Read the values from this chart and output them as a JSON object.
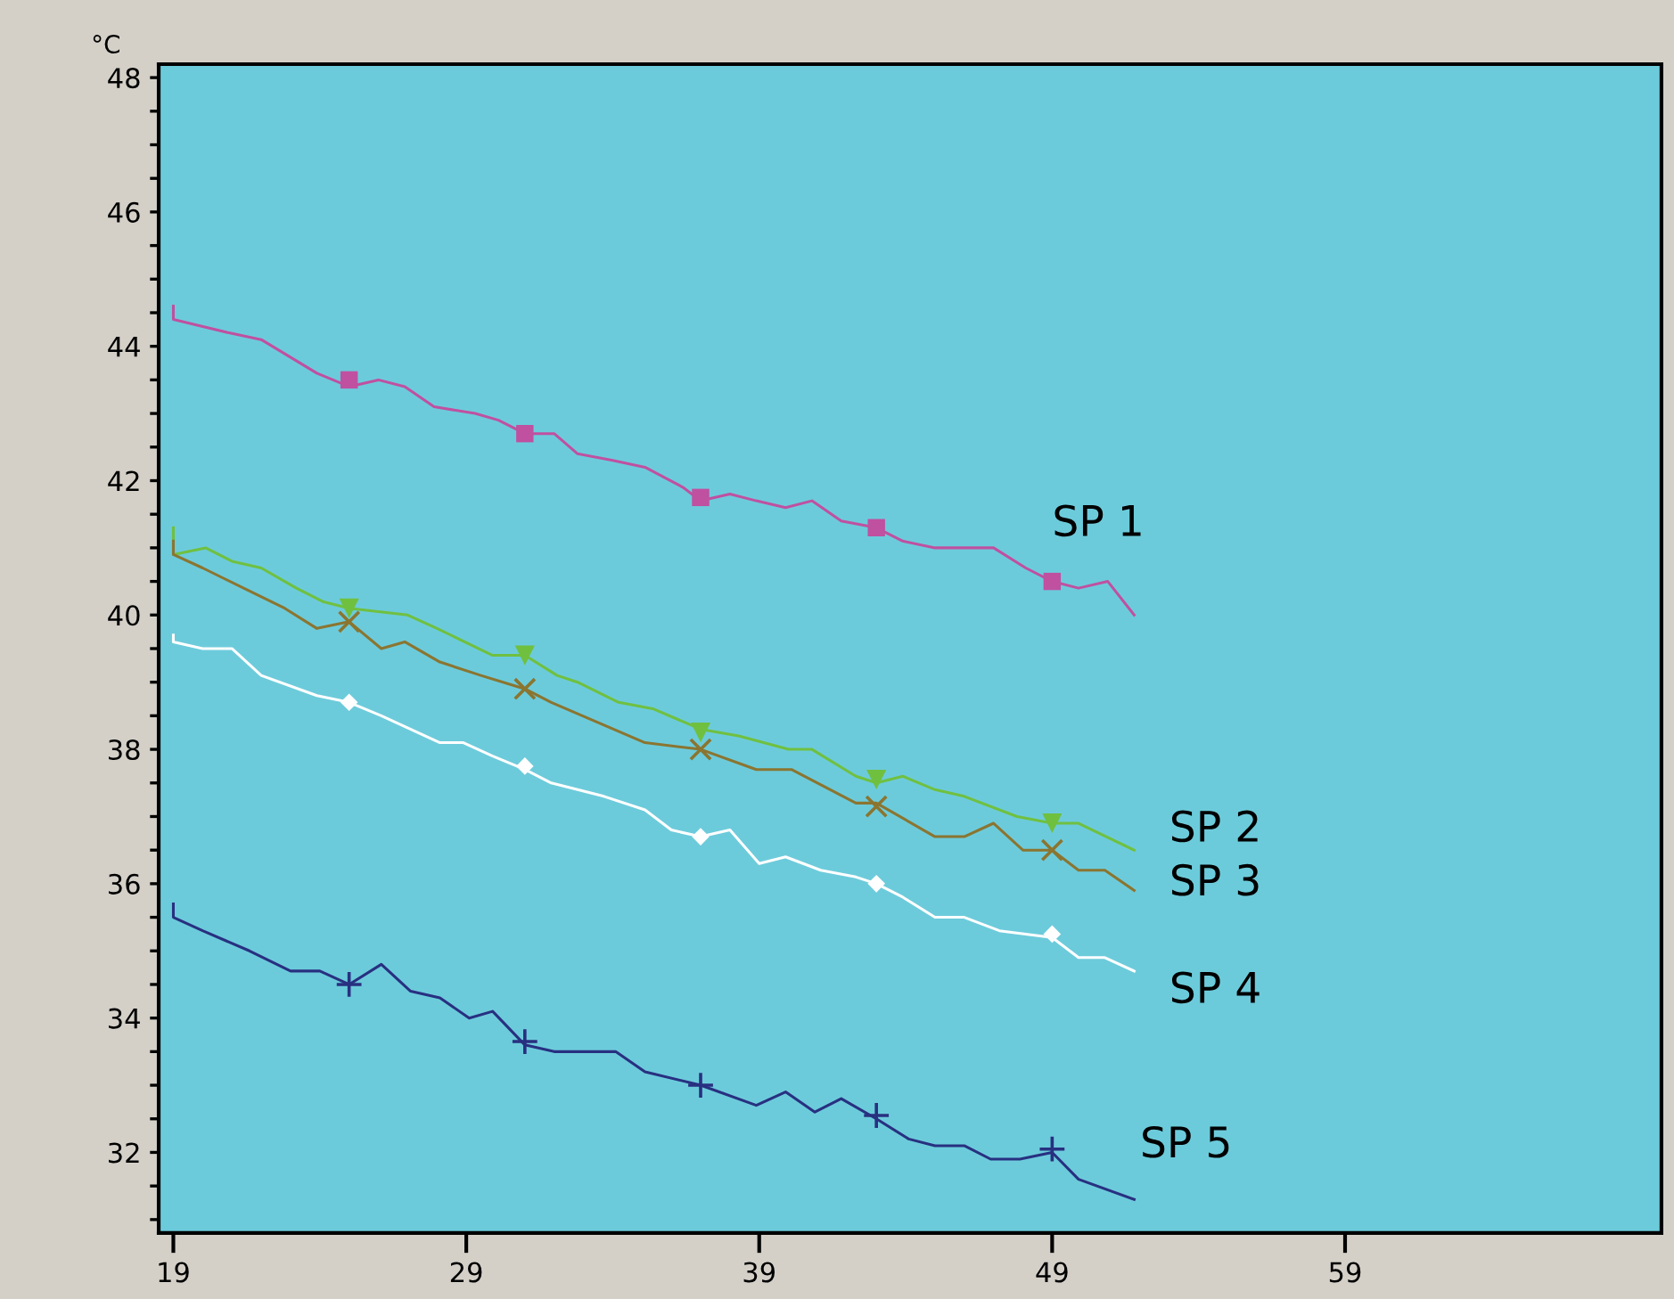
{
  "chart_data": {
    "type": "line",
    "ylabel": "°C",
    "xlim": [
      18.5,
      69.8
    ],
    "ylim": [
      30.8,
      48.2
    ],
    "xticks": [
      19,
      29,
      39,
      49,
      59
    ],
    "yticks": [
      {
        "value": 31,
        "label": null
      },
      {
        "value": 31.5,
        "label": null
      },
      32,
      {
        "value": 32.5,
        "label": null
      },
      {
        "value": 33,
        "label": null
      },
      {
        "value": 33.5,
        "label": null
      },
      34,
      {
        "value": 34.5,
        "label": null
      },
      {
        "value": 35,
        "label": null
      },
      {
        "value": 35.5,
        "label": null
      },
      36,
      {
        "value": 36.5,
        "label": null
      },
      {
        "value": 37,
        "label": null
      },
      {
        "value": 37.5,
        "label": null
      },
      38,
      {
        "value": 38.5,
        "label": null
      },
      {
        "value": 39,
        "label": null
      },
      {
        "value": 39.5,
        "label": null
      },
      40,
      {
        "value": 40.5,
        "label": null
      },
      {
        "value": 41,
        "label": null
      },
      {
        "value": 41.5,
        "label": null
      },
      42,
      {
        "value": 42.5,
        "label": null
      },
      {
        "value": 43,
        "label": null
      },
      {
        "value": 43.5,
        "label": null
      },
      44,
      {
        "value": 44.5,
        "label": null
      },
      {
        "value": 45,
        "label": null
      },
      {
        "value": 45.5,
        "label": null
      },
      46,
      {
        "value": 46.5,
        "label": null
      },
      {
        "value": 47,
        "label": null
      },
      {
        "value": 47.5,
        "label": null
      },
      48
    ],
    "grid": false,
    "legend": false,
    "line_style": "solid",
    "marker": "none",
    "series": [
      {
        "name": "SP 1",
        "color": "#c050a0",
        "x": [
          19,
          19,
          20.9,
          22,
          23.9,
          25,
          26,
          26.9,
          27.9,
          29.3,
          30.1,
          31,
          32,
          32.8,
          34,
          35.1,
          36.4,
          37,
          38,
          38.9,
          39.9,
          40.8,
          41.8,
          43,
          43.9,
          45,
          46,
          47,
          48.1,
          49,
          49.9,
          50.9,
          51.8
        ],
        "values": [
          44.6,
          44.4,
          44.2,
          44.1,
          43.6,
          43.4,
          43.5,
          43.4,
          43.1,
          43.0,
          42.9,
          42.7,
          42.7,
          42.4,
          42.3,
          42.2,
          41.9,
          41.7,
          41.8,
          41.7,
          41.6,
          41.7,
          41.4,
          41.3,
          41.1,
          41.0,
          41.0,
          41.0,
          40.7,
          40.5,
          40.4,
          40.5,
          40.0
        ]
      },
      {
        "name": "SP 2",
        "color": "#70c040",
        "x": [
          19,
          19,
          20.1,
          21,
          22,
          23.2,
          24.1,
          25,
          27,
          28,
          29.9,
          31,
          32.1,
          32.8,
          34.2,
          35.4,
          37,
          38.3,
          40,
          40.8,
          42.3,
          43,
          43.9,
          45,
          46,
          47.8,
          49,
          49.9,
          51.8
        ],
        "values": [
          41.3,
          40.9,
          41.0,
          40.8,
          40.7,
          40.4,
          40.2,
          40.1,
          40.0,
          39.8,
          39.4,
          39.4,
          39.1,
          39.0,
          38.7,
          38.6,
          38.3,
          38.2,
          38.0,
          38.0,
          37.6,
          37.5,
          37.6,
          37.4,
          37.3,
          37.0,
          36.9,
          36.9,
          36.5
        ]
      },
      {
        "name": "SP 3",
        "color": "#8b7530",
        "x": [
          19,
          19,
          20,
          21.4,
          22.8,
          23.9,
          25,
          26.1,
          26.9,
          28.1,
          29.5,
          31,
          31.9,
          35.1,
          37,
          38.9,
          40.1,
          42.3,
          43,
          45,
          46,
          47,
          48,
          49,
          49.9,
          50.8,
          51.8
        ],
        "values": [
          41.1,
          40.9,
          40.7,
          40.4,
          40.1,
          39.8,
          39.9,
          39.5,
          39.6,
          39.3,
          39.1,
          38.9,
          38.7,
          38.1,
          38.0,
          37.7,
          37.7,
          37.2,
          37.2,
          36.7,
          36.7,
          36.9,
          36.5,
          36.5,
          36.2,
          36.2,
          35.9
        ]
      },
      {
        "name": "SP 4",
        "color": "#ffffff",
        "x": [
          19,
          19,
          20,
          21,
          22,
          23.9,
          25,
          26.1,
          28.1,
          28.9,
          29.9,
          31,
          31.9,
          33.7,
          35.1,
          36,
          37,
          38,
          39,
          39.9,
          41.1,
          42.3,
          43,
          43.9,
          45,
          46,
          47.2,
          49,
          49.9,
          50.8,
          51.8
        ],
        "values": [
          39.7,
          39.6,
          39.5,
          39.5,
          39.1,
          38.8,
          38.7,
          38.5,
          38.1,
          38.1,
          37.9,
          37.7,
          37.5,
          37.3,
          37.1,
          36.8,
          36.7,
          36.8,
          36.3,
          36.4,
          36.2,
          36.1,
          36.0,
          35.8,
          35.5,
          35.5,
          35.3,
          35.2,
          34.9,
          34.9,
          34.7
        ]
      },
      {
        "name": "SP 5",
        "color": "#283080",
        "x": [
          19,
          19,
          20,
          21.6,
          23,
          24,
          25,
          26.1,
          27.1,
          28.1,
          29.1,
          29.9,
          31,
          32,
          34.1,
          35.1,
          37,
          38.9,
          39.9,
          40.9,
          41.8,
          43,
          44.1,
          45,
          46,
          46.9,
          47.9,
          49,
          49.9,
          51.8
        ],
        "values": [
          35.7,
          35.5,
          35.3,
          35.0,
          34.7,
          34.7,
          34.5,
          34.8,
          34.4,
          34.3,
          34.0,
          34.1,
          33.6,
          33.5,
          33.5,
          33.2,
          33.0,
          32.7,
          32.9,
          32.6,
          32.8,
          32.5,
          32.2,
          32.1,
          32.1,
          31.9,
          31.9,
          32.0,
          31.6,
          31.3
        ]
      },
      {
        "type": "scatter",
        "color": "#c050a0",
        "marker": "square",
        "x": [
          25,
          31,
          37,
          43,
          49
        ],
        "values": [
          43.5,
          42.7,
          41.75,
          41.3,
          40.5
        ]
      },
      {
        "type": "scatter",
        "color": "#70c040",
        "marker": "triangle",
        "x": [
          25,
          31,
          37,
          43,
          49
        ],
        "values": [
          40.1,
          39.4,
          38.25,
          37.55,
          36.9
        ]
      },
      {
        "type": "scatter",
        "color": "#8b7530",
        "marker": "cross",
        "x": [
          25,
          31,
          37,
          43,
          49
        ],
        "values": [
          39.9,
          38.9,
          38.0,
          37.15,
          36.5
        ]
      },
      {
        "type": "scatter",
        "color": "#ffffff",
        "marker": "diamond",
        "x": [
          25,
          31,
          37,
          43,
          49
        ],
        "values": [
          38.7,
          37.75,
          36.7,
          36.0,
          35.25
        ]
      },
      {
        "type": "scatter",
        "color": "#283080",
        "marker": "plus",
        "x": [
          25,
          31,
          37,
          43,
          49
        ],
        "values": [
          34.5,
          33.65,
          33.0,
          32.55,
          32.05
        ]
      }
    ]
  }
}
